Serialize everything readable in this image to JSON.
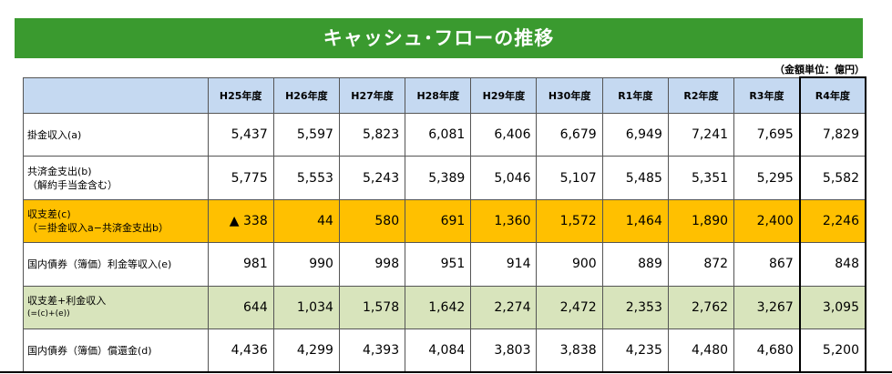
{
  "title": "キャッシュ･フローの推移",
  "unit_note": "（金額単位：億円）",
  "columns": [
    "H25年度",
    "H26年度",
    "H27年度",
    "H28年度",
    "H29年度",
    "H30年度",
    "R1年度",
    "R2年度",
    "R3年度",
    "R4年度"
  ],
  "rows": [
    {
      "label1": "掛金収入(a)",
      "label2": "",
      "values": [
        "5,437",
        "5,597",
        "5,823",
        "6,081",
        "6,406",
        "6,679",
        "6,949",
        "7,241",
        "7,695",
        "7,829"
      ]
    },
    {
      "label1": "共済金支出(b)",
      "label2": "（解約手当金含む）",
      "values": [
        "5,775",
        "5,553",
        "5,243",
        "5,389",
        "5,046",
        "5,107",
        "5,485",
        "5,351",
        "5,295",
        "5,582"
      ]
    },
    {
      "label1": "収支差(c)",
      "label2": "（＝掛金収入a−共済金支出b）",
      "values": [
        "▲ 338",
        "44",
        "580",
        "691",
        "1,360",
        "1,572",
        "1,464",
        "1,890",
        "2,400",
        "2,246"
      ]
    },
    {
      "label1": "国内債券（簿価）利金等収入(e)",
      "label2": "",
      "values": [
        "981",
        "990",
        "998",
        "951",
        "914",
        "900",
        "889",
        "872",
        "867",
        "848"
      ]
    },
    {
      "label1": "収支差+利金収入",
      "label2": "(=(c)+(e))",
      "values": [
        "644",
        "1,034",
        "1,578",
        "1,642",
        "2,274",
        "2,472",
        "2,353",
        "2,762",
        "3,267",
        "3,095"
      ]
    },
    {
      "label1": "国内債券（簿価）償還金(d)",
      "label2": "",
      "values": [
        "4,436",
        "4,299",
        "4,393",
        "4,084",
        "3,803",
        "3,838",
        "4,235",
        "4,480",
        "4,680",
        "5,200"
      ]
    }
  ],
  "colors": {
    "title_bg": "#3a9a2f",
    "header_bg": "#c5d9f1",
    "highlight_orange": "#ffc000",
    "highlight_green": "#d8e4bc"
  }
}
